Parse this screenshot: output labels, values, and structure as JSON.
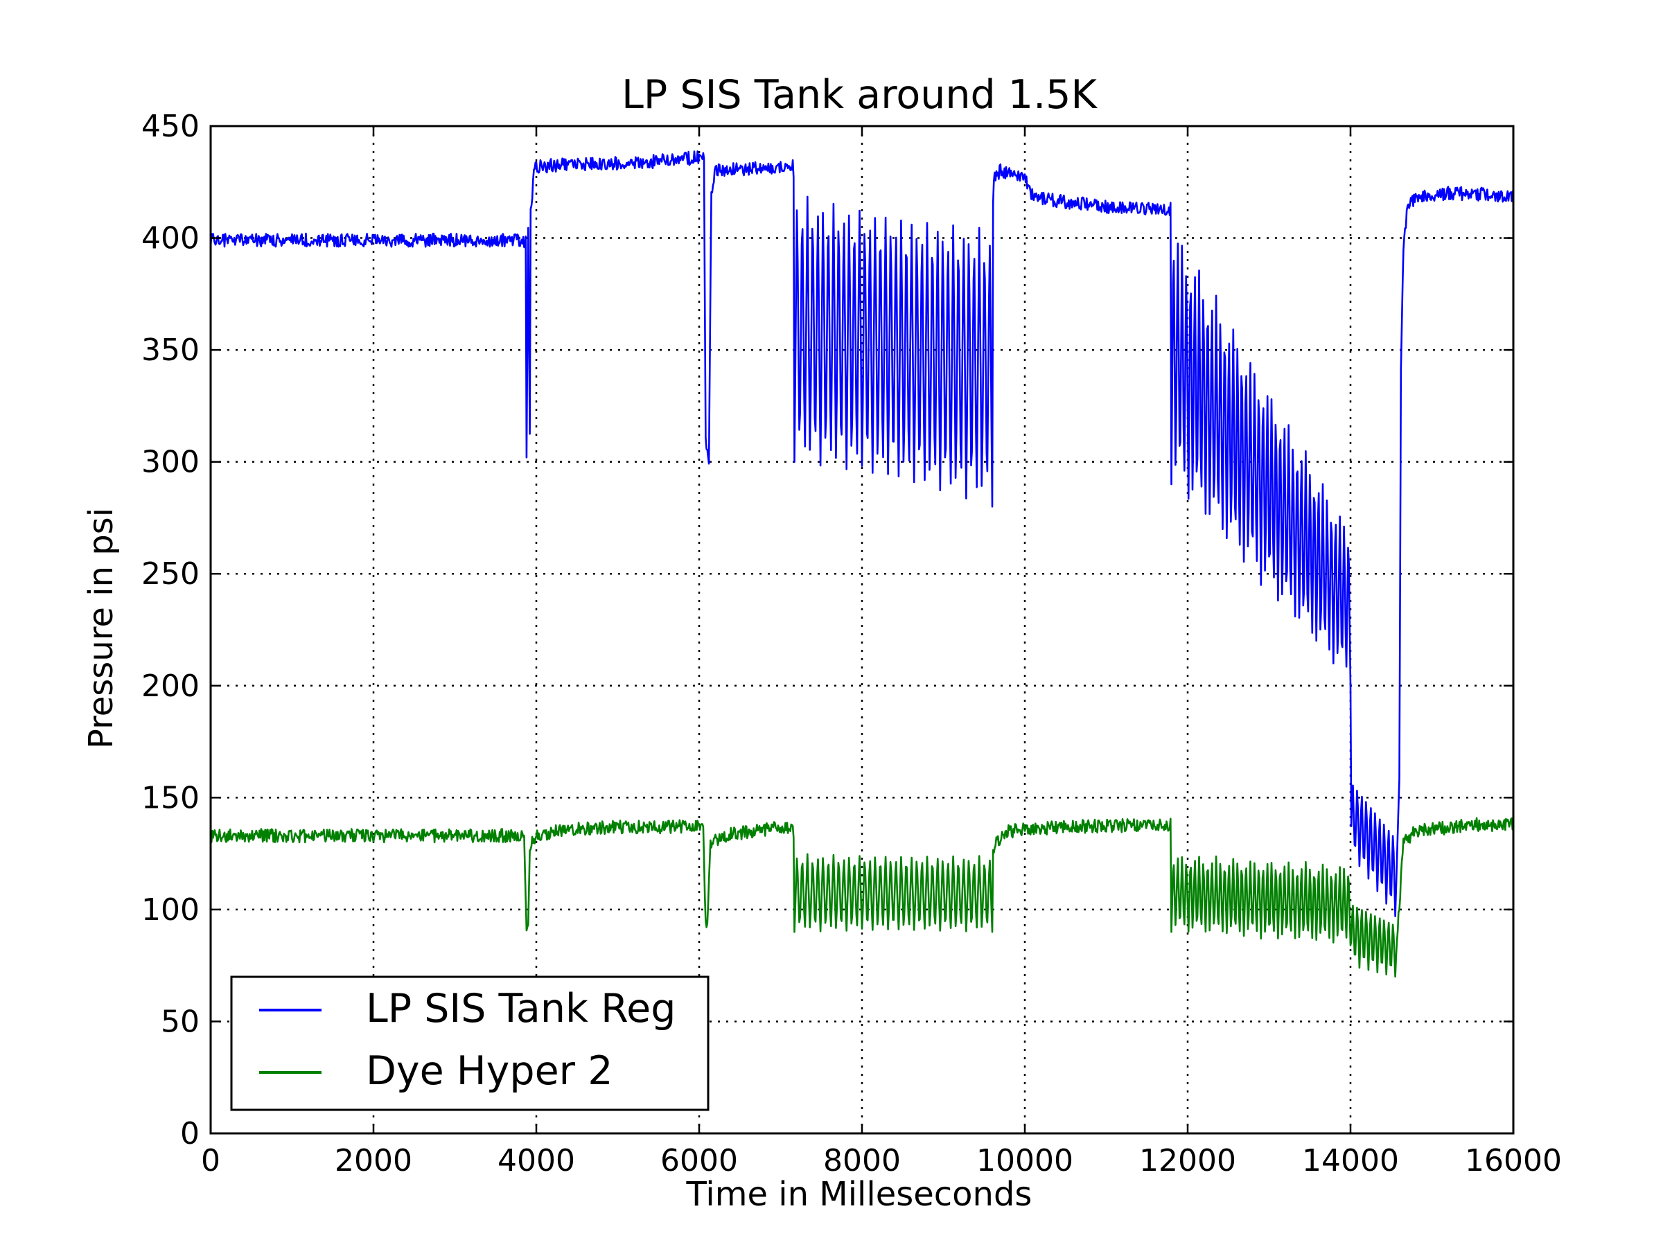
{
  "chart_data": {
    "type": "line",
    "title": "LP SIS Tank around 1.5K",
    "xlabel": "Time in Milleseconds",
    "ylabel": "Pressure in psi",
    "xlim": [
      0,
      16000
    ],
    "ylim": [
      0,
      450
    ],
    "x_ticks": [
      "0",
      "2000",
      "4000",
      "6000",
      "8000",
      "10000",
      "12000",
      "14000",
      "16000"
    ],
    "y_ticks": [
      "0",
      "50",
      "100",
      "150",
      "200",
      "250",
      "300",
      "350",
      "400",
      "450"
    ],
    "grid": true,
    "legend_position": "lower-left",
    "series": [
      {
        "name": "LP SIS Tank Reg",
        "color": "#0000ff",
        "x": [
          0,
          3800,
          3840,
          3870,
          3880,
          3900,
          3920,
          3930,
          3980,
          4600,
          5400,
          6000,
          6060,
          6080,
          6090,
          6120,
          6150,
          6200,
          6600,
          7000,
          7150,
          7170,
          7200,
          8000,
          8500,
          9000,
          9500,
          9600,
          9620,
          9700,
          10000,
          10100,
          11000,
          11700,
          11800,
          11820,
          12000,
          12500,
          13000,
          13300,
          13600,
          13900,
          13980,
          14000,
          14020,
          14100,
          14300,
          14500,
          14550,
          14600,
          14620,
          14650,
          14700,
          14800,
          15200,
          16000
        ],
        "y": [
          399,
          399,
          399,
          398,
          300,
          407,
          310,
          410,
          432,
          433,
          434,
          436,
          435,
          310,
          305,
          300,
          420,
          430,
          431,
          432,
          433,
          420,
          418,
          417,
          416,
          412,
          404,
          402,
          426,
          430,
          428,
          418,
          414,
          413,
          413,
          409,
          404,
          400,
          392,
          372,
          330,
          270,
          225,
          200,
          160,
          148,
          125,
          110,
          98,
          160,
          340,
          395,
          415,
          418,
          420,
          419
        ],
        "oscillations": [
          {
            "x": [
              7170,
              9600
            ],
            "high": [
              420,
              404
            ],
            "low": [
              300,
              280
            ],
            "count": 38
          },
          {
            "x": [
              11800,
              14000
            ],
            "high": [
              409,
              270
            ],
            "low": [
              290,
              200
            ],
            "count": 42
          },
          {
            "x": [
              14000,
              14550
            ],
            "high": [
              160,
              135
            ],
            "low": [
              125,
              97
            ],
            "count": 10
          }
        ]
      },
      {
        "name": "Dye Hyper 2",
        "color": "#008000",
        "x": [
          0,
          3800,
          3850,
          3880,
          3900,
          3920,
          3960,
          4200,
          5000,
          6000,
          6050,
          6080,
          6100,
          6140,
          6300,
          7000,
          7150,
          7170,
          9600,
          9650,
          9800,
          10500,
          11800,
          11820,
          14000,
          14500,
          14550,
          14650,
          14800,
          15500,
          16000
        ],
        "y": [
          133,
          133,
          132,
          90,
          92,
          128,
          132,
          135,
          137,
          137,
          135,
          95,
          92,
          130,
          133,
          137,
          136,
          125,
          125,
          130,
          135,
          137,
          138,
          125,
          120,
          95,
          75,
          130,
          135,
          138,
          138
        ],
        "oscillations": [
          {
            "x": [
              7170,
              9600
            ],
            "high": [
              125,
              124
            ],
            "low": [
              90,
              90
            ],
            "count": 38
          },
          {
            "x": [
              11800,
              14000
            ],
            "high": [
              125,
              120
            ],
            "low": [
              90,
              84
            ],
            "count": 42
          },
          {
            "x": [
              14000,
              14550
            ],
            "high": [
              105,
              95
            ],
            "low": [
              75,
              70
            ],
            "count": 10
          }
        ]
      }
    ]
  }
}
